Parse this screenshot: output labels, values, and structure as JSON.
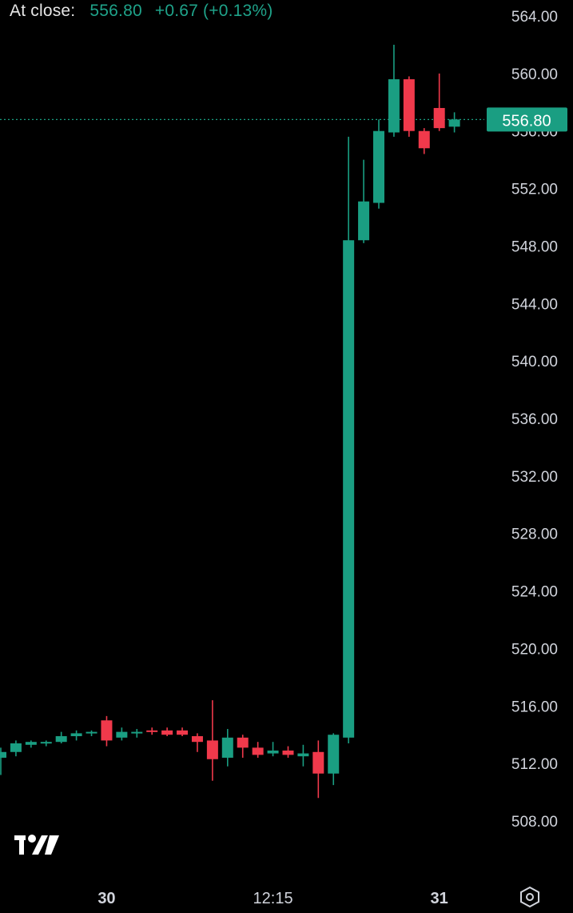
{
  "header": {
    "label": "At close:",
    "price": "556.80",
    "change": "+0.67 (+0.13%)"
  },
  "icons": {
    "logo": "tradingview-logo-icon",
    "settings": "settings-hexagon-icon"
  },
  "colors": {
    "background": "#000000",
    "up": "#1a9e82",
    "down": "#f0394b",
    "axis_text": "#d1d4dc",
    "price_tag": "#1a9e82"
  },
  "chart_data": {
    "type": "candlestick",
    "last_price": 556.8,
    "last_price_label": "556.80",
    "ylim": [
      506,
      565
    ],
    "y_ticks": [
      508,
      512,
      516,
      520,
      524,
      528,
      532,
      536,
      540,
      544,
      548,
      552,
      556,
      560,
      564
    ],
    "y_tick_labels": [
      "508.00",
      "512.00",
      "516.00",
      "520.00",
      "524.00",
      "528.00",
      "532.00",
      "536.00",
      "540.00",
      "544.00",
      "548.00",
      "552.00",
      "556.00",
      "560.00",
      "564.00"
    ],
    "x_labels": [
      {
        "label": "30",
        "bar_index": 7
      },
      {
        "label": "12:15",
        "bar_index": 18
      },
      {
        "label": "31",
        "bar_index": 29
      }
    ],
    "candles": [
      {
        "o": 512.4,
        "h": 513.1,
        "l": 511.2,
        "c": 512.8
      },
      {
        "o": 512.8,
        "h": 513.6,
        "l": 512.5,
        "c": 513.4
      },
      {
        "o": 513.3,
        "h": 513.6,
        "l": 513.1,
        "c": 513.5
      },
      {
        "o": 513.4,
        "h": 513.6,
        "l": 513.2,
        "c": 513.5
      },
      {
        "o": 513.5,
        "h": 514.2,
        "l": 513.4,
        "c": 513.9
      },
      {
        "o": 513.9,
        "h": 514.3,
        "l": 513.6,
        "c": 514.1
      },
      {
        "o": 514.1,
        "h": 514.3,
        "l": 513.9,
        "c": 514.2
      },
      {
        "o": 515.0,
        "h": 515.3,
        "l": 513.2,
        "c": 513.6
      },
      {
        "o": 513.8,
        "h": 514.5,
        "l": 513.6,
        "c": 514.2
      },
      {
        "o": 514.1,
        "h": 514.4,
        "l": 513.8,
        "c": 514.2
      },
      {
        "o": 514.3,
        "h": 514.5,
        "l": 514.0,
        "c": 514.2
      },
      {
        "o": 514.3,
        "h": 514.5,
        "l": 513.9,
        "c": 514.0
      },
      {
        "o": 514.3,
        "h": 514.5,
        "l": 513.9,
        "c": 514.0
      },
      {
        "o": 513.9,
        "h": 514.1,
        "l": 512.8,
        "c": 513.5
      },
      {
        "o": 513.6,
        "h": 516.4,
        "l": 510.8,
        "c": 512.3
      },
      {
        "o": 512.4,
        "h": 514.4,
        "l": 511.8,
        "c": 513.8
      },
      {
        "o": 513.8,
        "h": 514.0,
        "l": 512.4,
        "c": 513.1
      },
      {
        "o": 513.1,
        "h": 513.5,
        "l": 512.4,
        "c": 512.6
      },
      {
        "o": 512.7,
        "h": 513.5,
        "l": 512.5,
        "c": 512.9
      },
      {
        "o": 512.9,
        "h": 513.2,
        "l": 512.4,
        "c": 512.6
      },
      {
        "o": 512.5,
        "h": 513.3,
        "l": 511.8,
        "c": 512.7
      },
      {
        "o": 512.8,
        "h": 513.6,
        "l": 509.6,
        "c": 511.3
      },
      {
        "o": 511.3,
        "h": 514.1,
        "l": 510.5,
        "c": 514.0
      },
      {
        "o": 513.8,
        "h": 555.6,
        "l": 513.4,
        "c": 548.4
      },
      {
        "o": 548.4,
        "h": 554.0,
        "l": 548.2,
        "c": 551.1
      },
      {
        "o": 551.0,
        "h": 556.8,
        "l": 550.6,
        "c": 556.0
      },
      {
        "o": 555.9,
        "h": 562.0,
        "l": 555.6,
        "c": 559.6
      },
      {
        "o": 559.6,
        "h": 559.8,
        "l": 555.6,
        "c": 556.0
      },
      {
        "o": 556.0,
        "h": 556.2,
        "l": 554.4,
        "c": 554.8
      },
      {
        "o": 557.6,
        "h": 560.0,
        "l": 556.0,
        "c": 556.2
      },
      {
        "o": 556.3,
        "h": 557.3,
        "l": 555.9,
        "c": 556.8
      }
    ]
  }
}
